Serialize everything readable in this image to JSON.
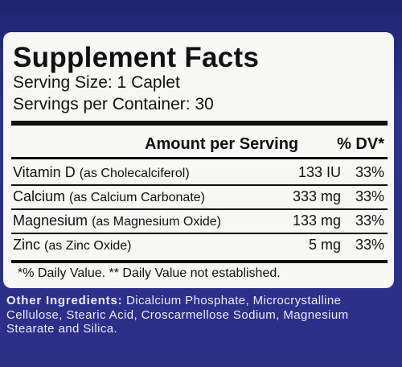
{
  "header": {
    "title": "Supplement Facts",
    "serving_size": "Serving Size: 1 Caplet",
    "servings_per_container": "Servings per Container: 30"
  },
  "table": {
    "columns": [
      "Amount per Serving",
      "% DV*"
    ],
    "rows": [
      [
        "Vitamin D",
        "(as Cholecalciferol)",
        "133 IU",
        "33%"
      ],
      [
        "Calcium",
        "(as Calcium Carbonate)",
        "333 mg",
        "33%"
      ],
      [
        "Magnesium",
        "(as Magnesium Oxide)",
        "133 mg",
        "33%"
      ],
      [
        "Zinc",
        "(as Zinc Oxide)",
        "5 mg",
        "33%"
      ]
    ]
  },
  "footnote": "*% Daily Value.  ** Daily Value not established.",
  "other_ingredients": {
    "label": "Other Ingredients:",
    "text": "Dicalcium Phosphate, Microcrystalline Cellulose, Stearic Acid, Croscarmellose Sodium, Magnesium Stearate and Silica."
  }
}
